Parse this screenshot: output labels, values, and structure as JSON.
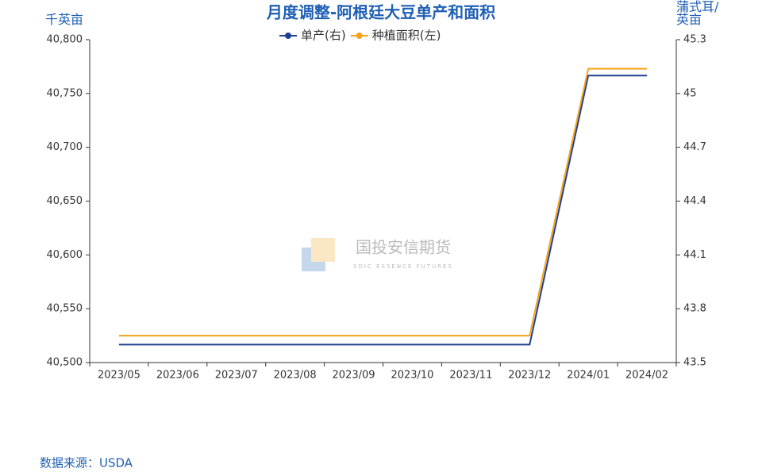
{
  "chart_data": {
    "type": "line",
    "title": "月度调整-阿根廷大豆单产和面积",
    "y_label": "千英亩",
    "y2_label": "蒲式耳/英亩",
    "source": "数据来源：USDA",
    "watermark": "国投安信期货",
    "watermark_sub": "SDIC ESSENCE FUTURES",
    "categories": [
      "2023/05",
      "2023/06",
      "2023/07",
      "2023/08",
      "2023/09",
      "2023/10",
      "2023/11",
      "2023/12",
      "2024/01",
      "2024/02"
    ],
    "series": [
      {
        "name": "单产(右)",
        "color": "#1f3f8f",
        "axis": "y2",
        "values": [
          43.6,
          43.6,
          43.6,
          43.6,
          43.6,
          43.6,
          43.6,
          43.6,
          45.1,
          45.1
        ]
      },
      {
        "name": "种植面积(左)",
        "color": "#f5a31c",
        "values": [
          40525,
          40525,
          40525,
          40525,
          40525,
          40525,
          40525,
          40525,
          40773,
          40773
        ]
      }
    ],
    "ylim": [
      40500,
      40800
    ],
    "yticks": [
      {
        "value": 40500,
        "label": "40,500"
      },
      {
        "value": 40550,
        "label": "40,550"
      },
      {
        "value": 40600,
        "label": "40,600"
      },
      {
        "value": 40650,
        "label": "40,650"
      },
      {
        "value": 40700,
        "label": "40,700"
      },
      {
        "value": 40750,
        "label": "40,750"
      },
      {
        "value": 40800,
        "label": "40,800"
      }
    ],
    "y2lim": [
      43.5,
      45.3
    ],
    "y2ticks": [
      43.5,
      43.8,
      44.1,
      44.4,
      44.7,
      45,
      45.3
    ],
    "grid": false
  }
}
